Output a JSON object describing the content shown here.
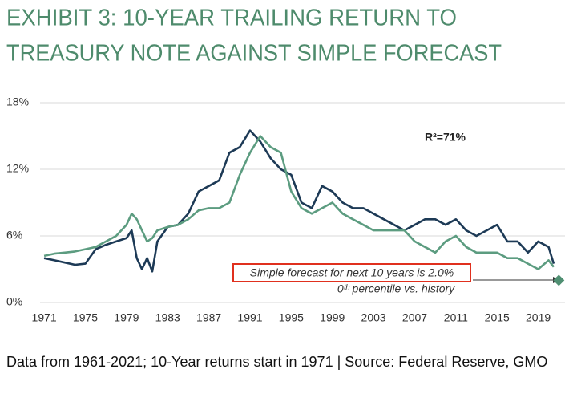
{
  "chart_data": {
    "type": "line",
    "title": [
      "EXHIBIT 3: 10-YEAR TRAILING RETURN TO",
      "TREASURY NOTE AGAINST SIMPLE FORECAST"
    ],
    "annotations": {
      "r2": "R²=71%",
      "forecast": "Simple forecast for next 10 years is 2.0%",
      "percentile": "0ᵗʰ percentile vs. history"
    },
    "caption": "Data from 1961-2021; 10-Year returns start in 1971 | Source: Federal Reserve, GMO",
    "x": [
      1971,
      1972,
      1973,
      1974,
      1975,
      1976,
      1977,
      1978,
      1979,
      1979.5,
      1980,
      1980.5,
      1981,
      1981.5,
      1982,
      1983,
      1984,
      1985,
      1986,
      1987,
      1988,
      1989,
      1990,
      1991,
      1992,
      1993,
      1994,
      1995,
      1996,
      1997,
      1998,
      1999,
      2000,
      2001,
      2002,
      2003,
      2004,
      2005,
      2006,
      2007,
      2008,
      2009,
      2010,
      2011,
      2012,
      2013,
      2014,
      2015,
      2016,
      2017,
      2018,
      2019,
      2020,
      2020.5
    ],
    "series": [
      {
        "color": "#1d3a56",
        "values": [
          4.0,
          3.8,
          3.6,
          3.4,
          3.5,
          4.8,
          5.2,
          5.5,
          5.8,
          6.5,
          4.0,
          3.0,
          4.0,
          2.8,
          5.5,
          6.8,
          7.0,
          8.0,
          10.0,
          10.5,
          11.0,
          13.5,
          14.0,
          15.5,
          14.5,
          13.0,
          12.0,
          11.5,
          9.0,
          8.5,
          10.5,
          10.0,
          9.0,
          8.5,
          8.5,
          8.0,
          7.5,
          7.0,
          6.5,
          7.0,
          7.5,
          7.5,
          7.0,
          7.5,
          6.5,
          6.0,
          6.5,
          7.0,
          5.5,
          5.5,
          4.5,
          5.5,
          5.0,
          3.5
        ]
      },
      {
        "color": "#5c9c80",
        "values": [
          4.2,
          4.4,
          4.5,
          4.6,
          4.8,
          5.0,
          5.5,
          6.0,
          7.0,
          8.0,
          7.5,
          6.5,
          5.5,
          5.8,
          6.5,
          6.8,
          7.0,
          7.5,
          8.3,
          8.5,
          8.5,
          9.0,
          11.5,
          13.5,
          15.0,
          14.0,
          13.5,
          10.0,
          8.5,
          8.0,
          8.5,
          9.0,
          8.0,
          7.5,
          7.0,
          6.5,
          6.5,
          6.5,
          6.5,
          5.5,
          5.0,
          4.5,
          5.5,
          6.0,
          5.0,
          4.5,
          4.5,
          4.5,
          4.0,
          4.0,
          3.5,
          3.0,
          3.8,
          3.2
        ]
      }
    ],
    "forecast_point": {
      "x": 2021,
      "value": 2.0,
      "color": "#4f8f72"
    },
    "xlim": [
      1970.6,
      2021.6
    ],
    "xticks": [
      1971,
      1975,
      1979,
      1983,
      1987,
      1991,
      1995,
      1999,
      2003,
      2007,
      2011,
      2015,
      2019
    ],
    "ylim": [
      0,
      18
    ],
    "yticks": [
      {
        "value": 0,
        "label": "0%"
      },
      {
        "value": 6,
        "label": "6%"
      },
      {
        "value": 12,
        "label": "12%"
      },
      {
        "value": 18,
        "label": "18%"
      }
    ],
    "grid": true
  }
}
